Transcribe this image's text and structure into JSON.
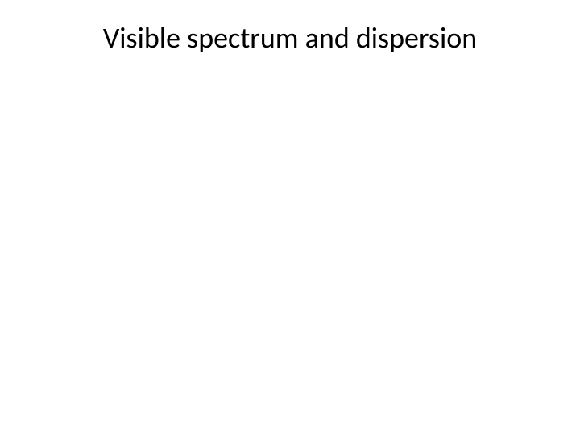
{
  "slide": {
    "title": "Visible spectrum and dispersion",
    "title_fontsize": 36,
    "title_fontweight": 400,
    "title_color": "#000000",
    "background_color": "#ffffff",
    "font_family": "Calibri"
  }
}
